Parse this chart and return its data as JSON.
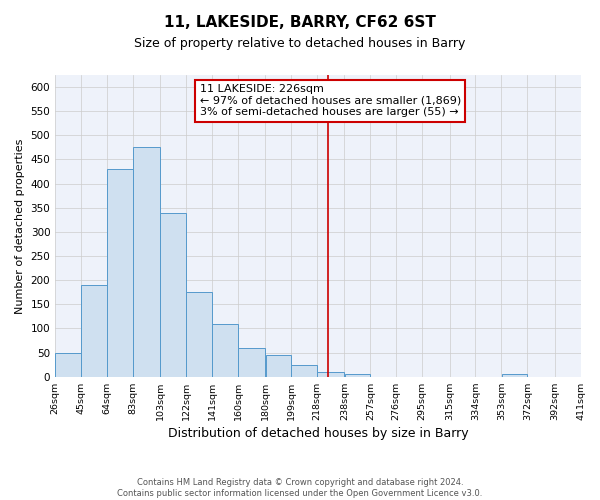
{
  "title": "11, LAKESIDE, BARRY, CF62 6ST",
  "subtitle": "Size of property relative to detached houses in Barry",
  "xlabel": "Distribution of detached houses by size in Barry",
  "ylabel": "Number of detached properties",
  "bar_left_edges": [
    26,
    45,
    64,
    83,
    103,
    122,
    141,
    160,
    180,
    199,
    218,
    238,
    257,
    276,
    295,
    315,
    334,
    353,
    372,
    392
  ],
  "bar_widths": [
    19,
    19,
    19,
    20,
    19,
    19,
    19,
    20,
    19,
    19,
    20,
    19,
    19,
    19,
    20,
    19,
    19,
    19,
    20,
    19
  ],
  "bar_heights": [
    50,
    190,
    430,
    475,
    340,
    175,
    110,
    60,
    45,
    25,
    10,
    5,
    0,
    0,
    0,
    0,
    0,
    5,
    0,
    0
  ],
  "bar_facecolor": "#cfe0f0",
  "bar_edgecolor": "#5599cc",
  "ylim": [
    0,
    625
  ],
  "yticks": [
    0,
    50,
    100,
    150,
    200,
    250,
    300,
    350,
    400,
    450,
    500,
    550,
    600
  ],
  "xtick_labels": [
    "26sqm",
    "45sqm",
    "64sqm",
    "83sqm",
    "103sqm",
    "122sqm",
    "141sqm",
    "160sqm",
    "180sqm",
    "199sqm",
    "218sqm",
    "238sqm",
    "257sqm",
    "276sqm",
    "295sqm",
    "315sqm",
    "334sqm",
    "353sqm",
    "372sqm",
    "392sqm",
    "411sqm"
  ],
  "xtick_positions": [
    26,
    45,
    64,
    83,
    103,
    122,
    141,
    160,
    180,
    199,
    218,
    238,
    257,
    276,
    295,
    315,
    334,
    353,
    372,
    392,
    411
  ],
  "vline_x": 226,
  "vline_color": "#cc0000",
  "vline_linewidth": 1.2,
  "annotation_text": "11 LAKESIDE: 226sqm\n← 97% of detached houses are smaller (1,869)\n3% of semi-detached houses are larger (55) →",
  "annotation_box_color": "#cc0000",
  "annotation_fontsize": 8,
  "grid_color": "#cccccc",
  "background_color": "#eef2fa",
  "title_fontsize": 11,
  "subtitle_fontsize": 9,
  "xlabel_fontsize": 9,
  "ylabel_fontsize": 8,
  "footer_text": "Contains HM Land Registry data © Crown copyright and database right 2024.\nContains public sector information licensed under the Open Government Licence v3.0."
}
